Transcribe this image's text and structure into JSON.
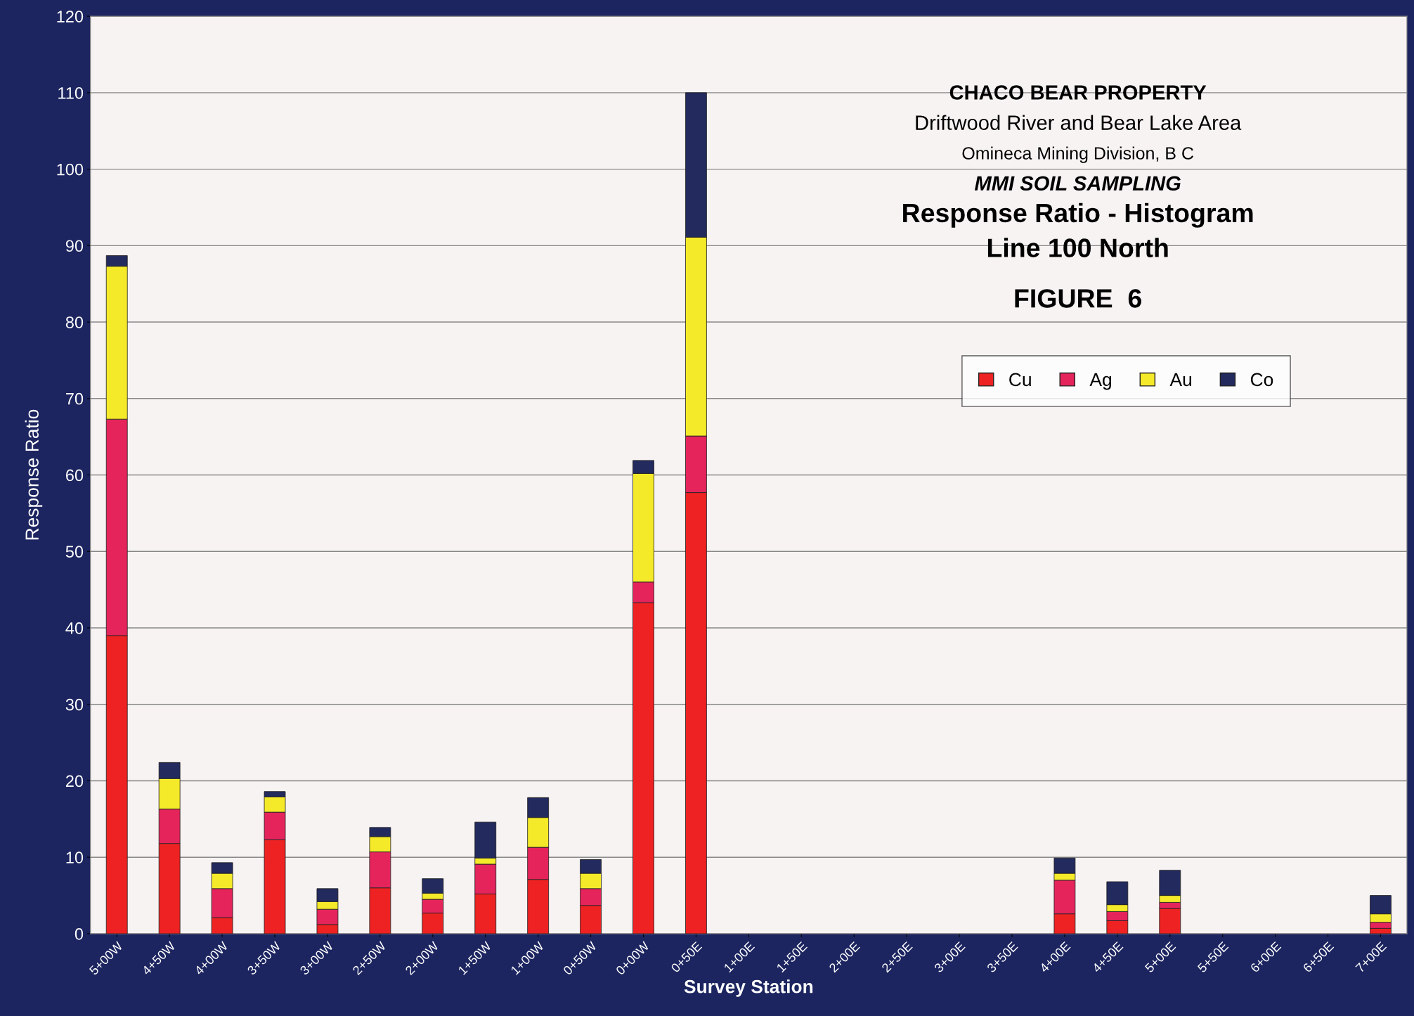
{
  "chart_data": {
    "type": "bar",
    "stacked": true,
    "title": "Response Ratio - Histogram",
    "subtitle": "Line 100 North",
    "annotations": [
      "CHACO BEAR PROPERTY",
      "Driftwood River and Bear Lake Area",
      "Omineca Mining Division, B C",
      "MMI SOIL SAMPLING",
      "FIGURE  6"
    ],
    "xlabel": "Survey Station",
    "ylabel": "Response Ratio",
    "categories": [
      "5+00W",
      "4+50W",
      "4+00W",
      "3+50W",
      "3+00W",
      "2+50W",
      "2+00W",
      "1+50W",
      "1+00W",
      "0+50W",
      "0+00W",
      "0+50E",
      "1+00E",
      "1+50E",
      "2+00E",
      "2+50E",
      "3+00E",
      "3+50E",
      "4+00E",
      "4+50E",
      "5+00E",
      "5+50E",
      "6+00E",
      "6+50E",
      "7+00E"
    ],
    "series": [
      {
        "name": "Cu",
        "color": "#ee2222",
        "values": [
          39,
          11.8,
          2.1,
          12.3,
          1.2,
          6.0,
          2.7,
          5.2,
          7.1,
          3.7,
          43.3,
          57.7,
          0,
          0,
          0,
          0,
          0,
          0,
          2.6,
          1.7,
          3.3,
          0,
          0,
          0,
          0.7
        ]
      },
      {
        "name": "Ag",
        "color": "#e5245c",
        "values": [
          28.3,
          4.5,
          3.8,
          3.6,
          2.0,
          4.7,
          1.8,
          3.9,
          4.2,
          2.2,
          2.7,
          7.4,
          0,
          0,
          0,
          0,
          0,
          0,
          4.4,
          1.2,
          0.8,
          0,
          0,
          0,
          0.8
        ]
      },
      {
        "name": "Au",
        "color": "#f5ea2a",
        "values": [
          20,
          4,
          2,
          2,
          1,
          2,
          0.8,
          0.8,
          3.9,
          2,
          14.2,
          26,
          0,
          0,
          0,
          0,
          0,
          0,
          0.9,
          0.9,
          0.9,
          0,
          0,
          0,
          1.1
        ]
      },
      {
        "name": "Co",
        "color": "#232a5e",
        "values": [
          1.4,
          2.1,
          1.4,
          0.7,
          1.7,
          1.2,
          1.9,
          4.7,
          2.6,
          1.8,
          1.7,
          18.9,
          0,
          0,
          0,
          0,
          0,
          0,
          2,
          3,
          3.3,
          0,
          0,
          0,
          2.4
        ]
      }
    ],
    "ylim": [
      0,
      120
    ],
    "yticks": [
      0,
      10,
      20,
      30,
      40,
      50,
      60,
      70,
      80,
      90,
      100,
      110,
      120
    ],
    "grid": "y",
    "legend": "top right"
  }
}
